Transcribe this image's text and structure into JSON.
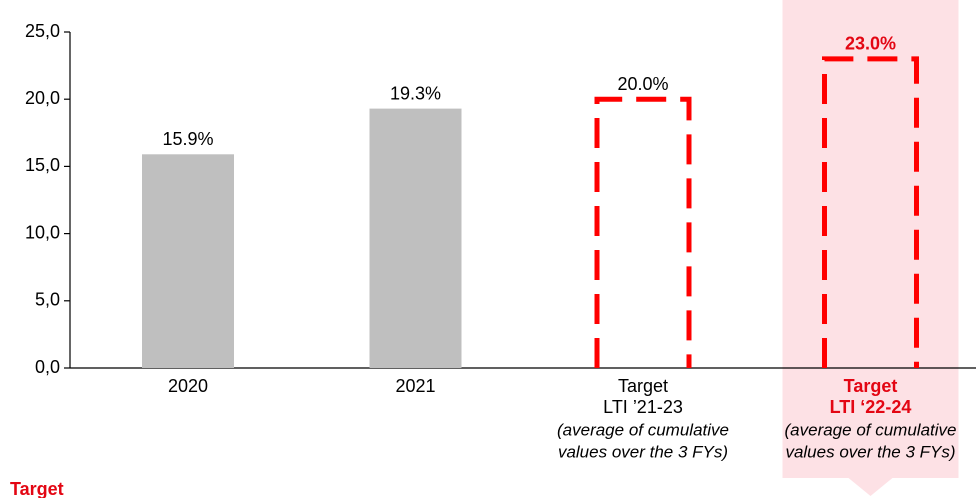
{
  "chart_data": {
    "type": "bar",
    "categories": [
      [
        "2020"
      ],
      [
        "2021"
      ],
      [
        "Target",
        "LTI ’21-23"
      ],
      [
        "Target",
        "LTI ‘22-24"
      ]
    ],
    "notes": [
      null,
      null,
      [
        "(average of cumulative",
        "values over the 3 FYs)"
      ],
      [
        "(average of cumulative",
        "values over the 3 FYs)"
      ]
    ],
    "values": [
      15.9,
      19.3,
      20.0,
      23.0
    ],
    "value_labels": [
      "15.9%",
      "19.3%",
      "20.0%",
      "23.0%"
    ],
    "styles": [
      "solid",
      "solid",
      "dashed",
      "dashed"
    ],
    "color": "#bfbfbf",
    "dash_color": "#ff0000",
    "highlight": 3,
    "highlight_color": "#e30613",
    "ylim": [
      0,
      25
    ],
    "yticks": [
      {
        "value": 0,
        "label": "0,0"
      },
      {
        "value": 5,
        "label": "5,0"
      },
      {
        "value": 10,
        "label": "10,0"
      },
      {
        "value": 15,
        "label": "15,0"
      },
      {
        "value": 20,
        "label": "20,0"
      },
      {
        "value": 25,
        "label": "25,0"
      }
    ],
    "footer": "Target"
  }
}
